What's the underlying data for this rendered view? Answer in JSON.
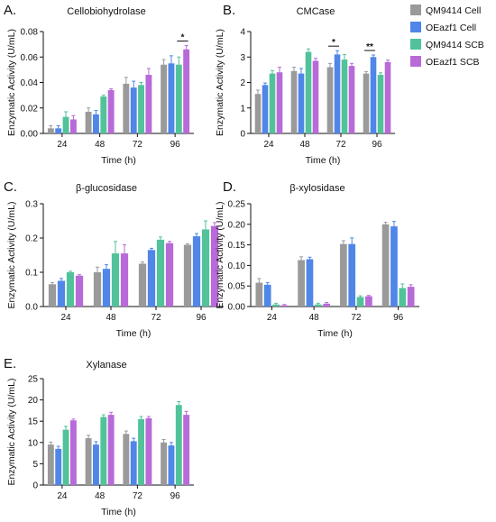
{
  "legend": [
    {
      "name": "QM9414 Cell",
      "color": "#9a9a9a"
    },
    {
      "name": "OEazf1 Cell",
      "color": "#4f86e8"
    },
    {
      "name": "QM9414 SCB",
      "color": "#52c29a"
    },
    {
      "name": "OEazf1 SCB",
      "color": "#b86ad8"
    }
  ],
  "chart_data": [
    {
      "type": "bar",
      "panel": "A.",
      "title": "Cellobiohydrolase",
      "xlabel": "Time (h)",
      "ylabel": "Enzymatic Activity (U/mL)",
      "categories": [
        "24",
        "48",
        "72",
        "96"
      ],
      "ylim": [
        0,
        0.08
      ],
      "yticks": [
        "0.00",
        "0.02",
        "0.04",
        "0.06",
        "0.08"
      ],
      "yticks_v": [
        0,
        0.02,
        0.04,
        0.06,
        0.08
      ],
      "series": [
        {
          "name": "QM9414 Cell",
          "values": [
            0.004,
            0.017,
            0.039,
            0.054
          ],
          "err": [
            0.002,
            0.003,
            0.005,
            0.004
          ]
        },
        {
          "name": "OEazf1 Cell",
          "values": [
            0.004,
            0.015,
            0.036,
            0.055
          ],
          "err": [
            0.002,
            0.003,
            0.005,
            0.006
          ]
        },
        {
          "name": "QM9414 SCB",
          "values": [
            0.013,
            0.029,
            0.038,
            0.054
          ],
          "err": [
            0.004,
            0.001,
            0.002,
            0.006
          ]
        },
        {
          "name": "OEazf1 SCB",
          "values": [
            0.011,
            0.034,
            0.046,
            0.066
          ],
          "err": [
            0.003,
            0.001,
            0.005,
            0.003
          ]
        }
      ],
      "significance": [
        {
          "label": "*",
          "category": 3,
          "from": 2,
          "to": 3
        }
      ]
    },
    {
      "type": "bar",
      "panel": "B.",
      "title": "CMCase",
      "xlabel": "Time (h)",
      "ylabel": "Enzymatic Activity (U/mL)",
      "categories": [
        "24",
        "48",
        "72",
        "96"
      ],
      "ylim": [
        0,
        4
      ],
      "yticks": [
        "0",
        "1",
        "2",
        "3",
        "4"
      ],
      "yticks_v": [
        0,
        1,
        2,
        3,
        4
      ],
      "series": [
        {
          "name": "QM9414 Cell",
          "values": [
            1.55,
            2.45,
            2.6,
            2.35
          ],
          "err": [
            0.15,
            0.15,
            0.15,
            0.08
          ]
        },
        {
          "name": "OEazf1 Cell",
          "values": [
            1.9,
            2.35,
            3.1,
            3.0
          ],
          "err": [
            0.08,
            0.2,
            0.15,
            0.08
          ]
        },
        {
          "name": "QM9414 SCB",
          "values": [
            2.35,
            3.2,
            2.9,
            2.3
          ],
          "err": [
            0.12,
            0.12,
            0.2,
            0.08
          ]
        },
        {
          "name": "OEazf1 SCB",
          "values": [
            2.4,
            2.85,
            2.65,
            2.8
          ],
          "err": [
            0.2,
            0.1,
            0.1,
            0.08
          ]
        }
      ],
      "significance": [
        {
          "label": "*",
          "category": 2,
          "from": 0,
          "to": 1
        },
        {
          "label": "**",
          "category": 3,
          "from": 0,
          "to": 1
        }
      ]
    },
    {
      "type": "bar",
      "panel": "C.",
      "title": "β-glucosidase",
      "xlabel": "Time (h)",
      "ylabel": "Enzymatic Activity (U/mL)",
      "categories": [
        "24",
        "48",
        "72",
        "96"
      ],
      "ylim": [
        0,
        0.3
      ],
      "yticks": [
        "0.0",
        "0.1",
        "0.2",
        "0.3"
      ],
      "yticks_v": [
        0,
        0.1,
        0.2,
        0.3
      ],
      "series": [
        {
          "name": "QM9414 Cell",
          "values": [
            0.065,
            0.1,
            0.125,
            0.18
          ],
          "err": [
            0.005,
            0.015,
            0.005,
            0.003
          ]
        },
        {
          "name": "OEazf1 Cell",
          "values": [
            0.075,
            0.11,
            0.165,
            0.205
          ],
          "err": [
            0.007,
            0.012,
            0.005,
            0.008
          ]
        },
        {
          "name": "QM9414 SCB",
          "values": [
            0.1,
            0.155,
            0.195,
            0.225
          ],
          "err": [
            0.003,
            0.035,
            0.008,
            0.025
          ]
        },
        {
          "name": "OEazf1 SCB",
          "values": [
            0.09,
            0.155,
            0.185,
            0.235
          ],
          "err": [
            0.003,
            0.025,
            0.005,
            0.01
          ]
        }
      ],
      "significance": []
    },
    {
      "type": "bar",
      "panel": "D.",
      "title": "β-xylosidase",
      "xlabel": "Time (h)",
      "ylabel": "Enzymatic Activity (U/mL)",
      "categories": [
        "24",
        "48",
        "72",
        "96"
      ],
      "ylim": [
        0,
        0.25
      ],
      "yticks": [
        "0.00",
        "0.05",
        "0.10",
        "0.15",
        "0.20",
        "0.25"
      ],
      "yticks_v": [
        0,
        0.05,
        0.1,
        0.15,
        0.2,
        0.25
      ],
      "series": [
        {
          "name": "QM9414 Cell",
          "values": [
            0.058,
            0.113,
            0.152,
            0.2
          ],
          "err": [
            0.01,
            0.008,
            0.008,
            0.005
          ]
        },
        {
          "name": "OEazf1 Cell",
          "values": [
            0.053,
            0.115,
            0.152,
            0.195
          ],
          "err": [
            0.005,
            0.005,
            0.015,
            0.012
          ]
        },
        {
          "name": "QM9414 SCB",
          "values": [
            0.005,
            0.005,
            0.023,
            0.045
          ],
          "err": [
            0.003,
            0.003,
            0.003,
            0.01
          ]
        },
        {
          "name": "OEazf1 SCB",
          "values": [
            0.003,
            0.007,
            0.025,
            0.048
          ],
          "err": [
            0.002,
            0.003,
            0.002,
            0.005
          ]
        }
      ],
      "significance": []
    },
    {
      "type": "bar",
      "panel": "E.",
      "title": "Xylanase",
      "xlabel": "Time (h)",
      "ylabel": "Enzymatic Activity (U/mL)",
      "categories": [
        "24",
        "48",
        "72",
        "96"
      ],
      "ylim": [
        0,
        25
      ],
      "yticks": [
        "0",
        "5",
        "10",
        "15",
        "20",
        "25"
      ],
      "yticks_v": [
        0,
        5,
        10,
        15,
        20,
        25
      ],
      "series": [
        {
          "name": "QM9414 Cell",
          "values": [
            9.5,
            11.0,
            12.0,
            10.0
          ],
          "err": [
            0.6,
            0.7,
            0.7,
            0.7
          ]
        },
        {
          "name": "OEazf1 Cell",
          "values": [
            8.5,
            9.5,
            10.3,
            9.3
          ],
          "err": [
            0.6,
            0.7,
            0.7,
            0.7
          ]
        },
        {
          "name": "QM9414 SCB",
          "values": [
            13.0,
            16.0,
            15.5,
            18.8
          ],
          "err": [
            0.8,
            0.5,
            0.6,
            0.8
          ]
        },
        {
          "name": "OEazf1 SCB",
          "values": [
            15.2,
            16.5,
            15.7,
            16.5
          ],
          "err": [
            0.3,
            0.6,
            0.4,
            0.8
          ]
        }
      ],
      "significance": []
    }
  ]
}
